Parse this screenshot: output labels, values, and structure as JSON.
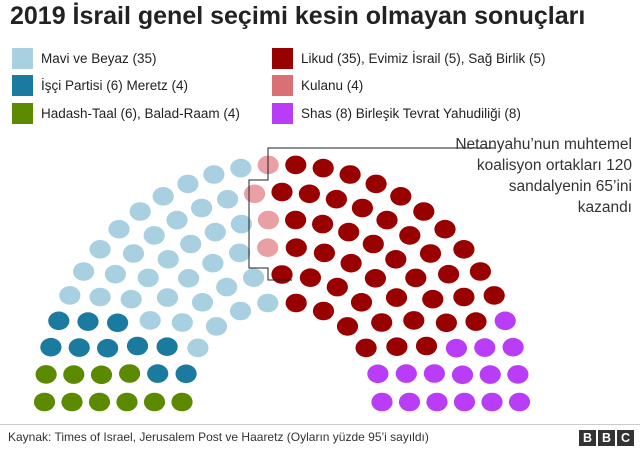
{
  "title": "2019 İsrail genel seçimi kesin olmayan sonuçları",
  "note": "Netanyahu’nun muhtemel koalisyon ortakları 120 sandalyenin 65’ini kazandı",
  "source": "Kaynak: Times of Israel, Jerusalem Post ve Haaretz (Oyların yüzde 95’i sayıldı)",
  "logo": [
    "B",
    "B",
    "C"
  ],
  "chart_data": {
    "type": "parliament",
    "title": "2019 İsrail genel seçimi kesin olmayan sonuçları",
    "total_seats": 120,
    "coalition_seats": 65,
    "groups": [
      {
        "name": "Hadash-Taal (6), Balad-Raam (4)",
        "seats": 10,
        "color": "#5b8a00"
      },
      {
        "name": "İşçi Partisi (6) Meretz (4)",
        "seats": 10,
        "color": "#1a7aa0"
      },
      {
        "name": "Mavi ve Beyaz (35)",
        "seats": 35,
        "color": "#a8d0e0"
      },
      {
        "name": "Kulanu (4)",
        "seats": 4,
        "color": "#e8a0a4"
      },
      {
        "name": "Likud (35), Evimiz İsrail (5), Sağ Birlik (5)",
        "seats": 45,
        "color": "#990000"
      },
      {
        "name": "Shas (8) Birleşik Tevrat Yahudiliği (8)",
        "seats": 16,
        "color": "#b93cf6"
      }
    ],
    "legend": [
      {
        "label": "Mavi ve Beyaz (35)",
        "color": "#a8d0e0"
      },
      {
        "label": "Likud (35), Evimiz İsrail (5), Sağ Birlik (5)",
        "color": "#990000"
      },
      {
        "label": "İşçi Partisi (6) Meretz (4)",
        "color": "#1a7aa0"
      },
      {
        "label": "Kulanu (4)",
        "color": "#d87076"
      },
      {
        "label": "Hadash-Taal (6), Balad-Raam (4)",
        "color": "#5b8a00"
      },
      {
        "label": "Shas (8) Birleşik Tevrat Yahudiliği (8)",
        "color": "#b93cf6"
      }
    ]
  }
}
